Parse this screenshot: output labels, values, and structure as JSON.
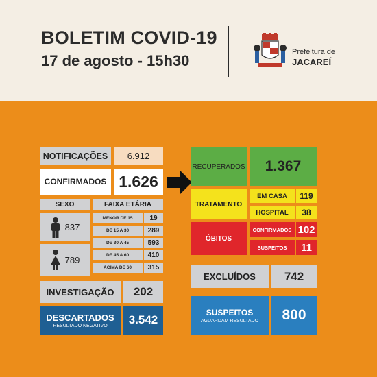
{
  "header": {
    "title": "BOLETIM COVID-19",
    "date": "17 de agosto - 15h30",
    "city_prefix": "Prefeitura de",
    "city_name": "JACAREÍ"
  },
  "left": {
    "notificacoes": {
      "label": "NOTIFICAÇÕES",
      "value": "6.912"
    },
    "confirmados": {
      "label": "CONFIRMADOS",
      "value": "1.626"
    },
    "sexo": {
      "label": "SEXO",
      "male": {
        "icon": "male-person-icon",
        "value": "837"
      },
      "female": {
        "icon": "female-person-icon",
        "value": "789"
      }
    },
    "faixa_etaria": {
      "label": "FAIXA ETÁRIA",
      "rows": [
        {
          "label": "MENOR DE 15",
          "value": "19"
        },
        {
          "label": "DE 15 A 30",
          "value": "289"
        },
        {
          "label": "DE 30 A 45",
          "value": "593"
        },
        {
          "label": "DE 45 A 60",
          "value": "410"
        },
        {
          "label": "ACIMA DE 60",
          "value": "315"
        }
      ]
    },
    "investigacao": {
      "label": "INVESTIGAÇÃO",
      "value": "202"
    },
    "descartados": {
      "label": "DESCARTADOS",
      "sub": "RESULTADO NEGATIVO",
      "value": "3.542"
    }
  },
  "right": {
    "recuperados": {
      "label": "RECUPERADOS",
      "value": "1.367"
    },
    "tratamento": {
      "label": "TRATAMENTO",
      "em_casa": {
        "label": "EM CASA",
        "value": "119"
      },
      "hospital": {
        "label": "HOSPITAL",
        "value": "38"
      }
    },
    "obitos": {
      "label": "ÓBITOS",
      "confirmados": {
        "label": "CONFIRMADOS",
        "value": "102"
      },
      "suspeitos": {
        "label": "SUSPEITOS",
        "value": "11"
      }
    },
    "excluidos": {
      "label": "EXCLUÍDOS",
      "value": "742"
    },
    "suspeitos": {
      "label": "SUSPEITOS",
      "sub": "AGUARDAM RESULTADO",
      "value": "800"
    }
  },
  "colors": {
    "orange": "#ec8d1a",
    "green": "#5cad45",
    "yellow": "#f4e21c",
    "red": "#e0262b",
    "blue": "#2a7fbf"
  }
}
